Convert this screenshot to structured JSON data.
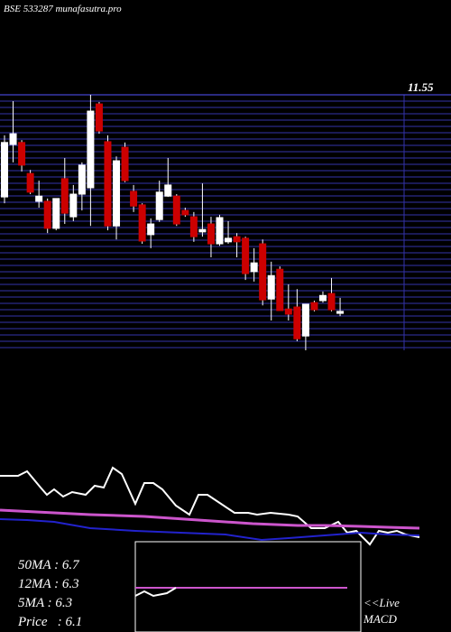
{
  "chart_data": {
    "type": "candlestick",
    "title": "BSE 533287 munafasutra.pro",
    "open": [
      8.98,
      10.3,
      10.35,
      9.57,
      8.87,
      8.87,
      8.19,
      9.44,
      8.48,
      9.05,
      9.21,
      11.32,
      10.37,
      8.25,
      10.23,
      9.12,
      8.78,
      8.03,
      8.41,
      9.0,
      9.0,
      8.64,
      8.48,
      8.1,
      8.3,
      7.8,
      7.85,
      7.98,
      7.94,
      7.1,
      7.8,
      6.41,
      7.16,
      6.16,
      6.21,
      5.48,
      6.32,
      6.37,
      6.55,
      6.05
    ],
    "high": [
      10.53,
      11.39,
      10.41,
      9.66,
      9.39,
      8.94,
      8.94,
      9.96,
      9.28,
      9.85,
      11.55,
      11.37,
      10.53,
      10.0,
      10.35,
      9.28,
      8.82,
      8.44,
      9.39,
      9.96,
      9.05,
      8.71,
      8.6,
      9.32,
      8.48,
      8.53,
      8.37,
      8.07,
      7.98,
      7.69,
      7.91,
      7.35,
      7.23,
      6.78,
      6.66,
      6.28,
      6.37,
      6.6,
      6.94,
      6.44
    ],
    "low": [
      8.82,
      9.85,
      9.62,
      9.05,
      8.71,
      8.07,
      8.14,
      8.3,
      8.37,
      8.64,
      8.25,
      10.57,
      8.14,
      7.91,
      9.35,
      8.6,
      7.8,
      7.69,
      8.35,
      8.98,
      8.25,
      8.48,
      7.85,
      7.98,
      7.46,
      7.75,
      7.8,
      7.46,
      6.89,
      6.85,
      6.25,
      5.87,
      6.12,
      5.87,
      5.35,
      5.12,
      6.1,
      6.32,
      6.1,
      5.98
    ],
    "close": [
      10.35,
      10.57,
      9.78,
      9.1,
      9.0,
      8.19,
      8.94,
      8.57,
      9.05,
      9.78,
      11.14,
      10.64,
      8.25,
      9.89,
      9.39,
      8.75,
      7.87,
      8.3,
      9.1,
      9.28,
      8.3,
      8.53,
      7.98,
      8.16,
      7.8,
      8.46,
      7.94,
      7.85,
      7.05,
      7.32,
      6.39,
      7.0,
      6.12,
      6.03,
      5.41,
      6.28,
      6.14,
      6.5,
      6.14,
      6.1
    ],
    "up_color": "#ffffff",
    "down_color": "#cc0000",
    "ylim": [
      5.12,
      11.55
    ],
    "yticks": [
      11.55
    ]
  },
  "stats": [
    "50MA : 6.7",
    "12MA : 6.3",
    "5MA : 6.3",
    "Price   : 6.1"
  ],
  "live": "<<Live",
  "macd": "MACD"
}
